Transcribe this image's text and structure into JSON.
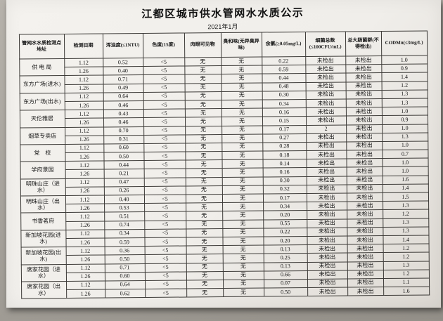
{
  "document": {
    "title": "江都区城市供水管网水水质公示",
    "subtitle": "2021年1月"
  },
  "table": {
    "columns": [
      "管网水水质检测点地址",
      "检测日期",
      "浑浊度(≤1NTU)",
      "色度(15度)",
      "肉眼可见物",
      "臭和味(无异臭异味)",
      "余氯(≥0.05mg/L)",
      "细菌总数(≤100CFU/mL)",
      "总大肠菌群(不得检出)",
      "CODMn(≤3mg/L)"
    ],
    "groups": [
      {
        "location": "供 电 局",
        "rows": [
          [
            "1.12",
            "0.52",
            "<5",
            "无",
            "无",
            "0.22",
            "未检出",
            "未检出",
            "1.0"
          ],
          [
            "1.26",
            "0.40",
            "<5",
            "无",
            "无",
            "0.59",
            "未检出",
            "未检出",
            "0.9"
          ]
        ]
      },
      {
        "location": "东方广场(进水)",
        "rows": [
          [
            "1.12",
            "0.71",
            "<5",
            "无",
            "无",
            "0.44",
            "未检出",
            "未检出",
            "1.4"
          ],
          [
            "1.26",
            "0.49",
            "<5",
            "无",
            "无",
            "0.48",
            "未检出",
            "未检出",
            "1.2"
          ]
        ]
      },
      {
        "location": "东方广场(出水)",
        "rows": [
          [
            "1.12",
            "0.64",
            "<5",
            "无",
            "无",
            "0.30",
            "未检出",
            "未检出",
            "1.3"
          ],
          [
            "1.26",
            "0.46",
            "<5",
            "无",
            "无",
            "0.34",
            "未检出",
            "未检出",
            "1.3"
          ]
        ]
      },
      {
        "location": "天伦雅居",
        "rows": [
          [
            "1.12",
            "0.43",
            "<5",
            "无",
            "无",
            "0.16",
            "未检出",
            "未检出",
            "1.0"
          ],
          [
            "1.26",
            "0.46",
            "<5",
            "无",
            "无",
            "0.15",
            "未检出",
            "未检出",
            "0.9"
          ]
        ]
      },
      {
        "location": "烟草专卖店",
        "rows": [
          [
            "1.12",
            "0.70",
            "<5",
            "无",
            "无",
            "0.17",
            "2",
            "未检出",
            "1.0"
          ],
          [
            "1.26",
            "0.31",
            "<5",
            "无",
            "无",
            "0.27",
            "未检出",
            "未检出",
            "1.3"
          ]
        ]
      },
      {
        "location": "党　校",
        "rows": [
          [
            "1.12",
            "0.60",
            "<5",
            "无",
            "无",
            "0.28",
            "未检出",
            "未检出",
            "1.0"
          ],
          [
            "1.26",
            "0.50",
            "<5",
            "无",
            "无",
            "0.18",
            "未检出",
            "未检出",
            "0.7"
          ]
        ]
      },
      {
        "location": "学府景园",
        "rows": [
          [
            "1.12",
            "0.44",
            "<5",
            "无",
            "无",
            "0.14",
            "未检出",
            "未检出",
            "1.0"
          ],
          [
            "1.26",
            "0.21",
            "<5",
            "无",
            "无",
            "0.16",
            "未检出",
            "未检出",
            "1.0"
          ]
        ]
      },
      {
        "location": "明珠山庄（进水）",
        "rows": [
          [
            "1.12",
            "0.47",
            "<5",
            "无",
            "无",
            "0.30",
            "未检出",
            "未检出",
            "1.6"
          ],
          [
            "1.26",
            "0.26",
            "<5",
            "无",
            "无",
            "0.32",
            "未检出",
            "未检出",
            "1.4"
          ]
        ]
      },
      {
        "location": "明珠山庄（出水）",
        "rows": [
          [
            "1.12",
            "0.40",
            "<5",
            "无",
            "无",
            "0.17",
            "未检出",
            "未检出",
            "1.5"
          ],
          [
            "1.26",
            "0.53",
            "<5",
            "无",
            "无",
            "0.34",
            "未检出",
            "未检出",
            "1.3"
          ]
        ]
      },
      {
        "location": "书香茗府",
        "rows": [
          [
            "1.12",
            "0.51",
            "<5",
            "无",
            "无",
            "0.20",
            "未检出",
            "未检出",
            "1.2"
          ],
          [
            "1.26",
            "0.74",
            "<5",
            "无",
            "无",
            "0.55",
            "未检出",
            "未检出",
            "1.3"
          ]
        ]
      },
      {
        "location": "新加坡花园(进水)",
        "rows": [
          [
            "1.12",
            "0.34",
            "<5",
            "无",
            "无",
            "0.22",
            "未检出",
            "未检出",
            "1.3"
          ],
          [
            "1.26",
            "0.59",
            "<5",
            "无",
            "无",
            "0.20",
            "未检出",
            "未检出",
            "1.4"
          ]
        ]
      },
      {
        "location": "新加坡花园(出水)",
        "rows": [
          [
            "1.12",
            "0.36",
            "<5",
            "无",
            "无",
            "0.13",
            "未检出",
            "未检出",
            "1.2"
          ],
          [
            "1.26",
            "0.50",
            "<5",
            "无",
            "无",
            "0.25",
            "未检出",
            "未检出",
            "1.2"
          ]
        ]
      },
      {
        "location": "席家花园（进水）",
        "rows": [
          [
            "1.12",
            "0.71",
            "<5",
            "无",
            "无",
            "0.13",
            "未检出",
            "未检出",
            "1.3"
          ],
          [
            "1.26",
            "0.60",
            "<5",
            "无",
            "无",
            "0.66",
            "未检出",
            "未检出",
            "1.2"
          ]
        ]
      },
      {
        "location": "席家花园（出水）",
        "rows": [
          [
            "1.12",
            "0.64",
            "<5",
            "无",
            "无",
            "0.07",
            "未检出",
            "未检出",
            "1.1"
          ],
          [
            "1.26",
            "0.62",
            "<5",
            "无",
            "无",
            "0.50",
            "未检出",
            "未检出",
            "1.6"
          ]
        ]
      }
    ]
  }
}
